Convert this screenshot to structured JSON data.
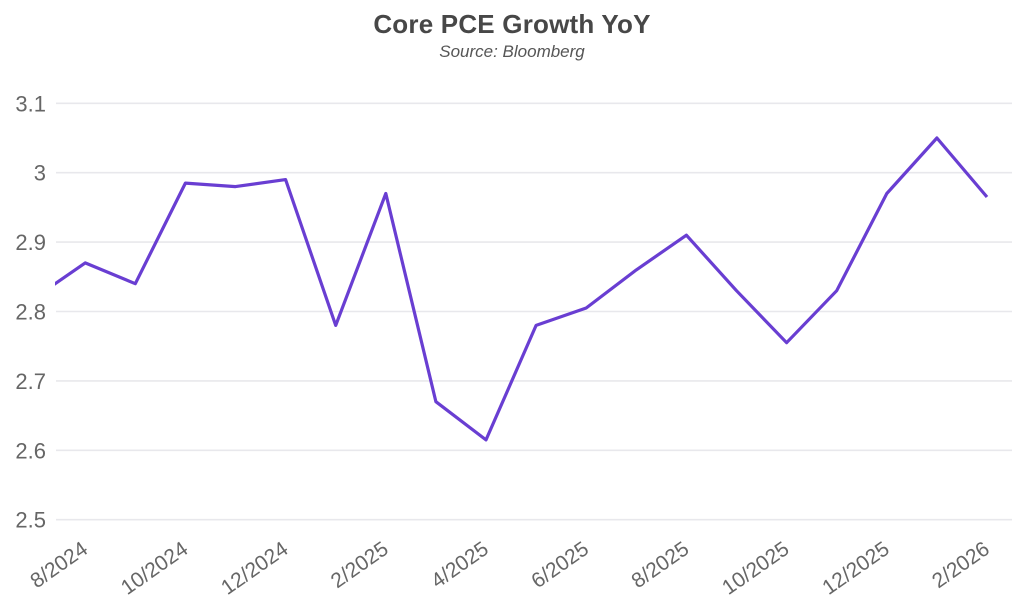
{
  "header": {
    "title": "Core PCE Growth YoY",
    "subtitle": "Source: Bloomberg"
  },
  "chart_data": {
    "type": "line",
    "title": "Core PCE Growth YoY",
    "subtitle": "Source: Bloomberg",
    "x": [
      "8/2024",
      "9/2024",
      "10/2024",
      "11/2024",
      "12/2024",
      "1/2025",
      "2/2025",
      "3/2025",
      "4/2025",
      "5/2025",
      "6/2025",
      "7/2025",
      "8/2025",
      "9/2025",
      "10/2025",
      "11/2025",
      "12/2025",
      "1/2026",
      "2/2026"
    ],
    "values": [
      2.87,
      2.84,
      2.985,
      2.98,
      2.99,
      2.78,
      2.97,
      2.67,
      2.615,
      2.78,
      2.805,
      2.86,
      2.91,
      2.83,
      2.755,
      2.83,
      2.97,
      3.05,
      2.965
    ],
    "lead_in": {
      "x": "7/2024",
      "value": 2.82,
      "note": "line enters clipped from left plot edge"
    },
    "x_tick_labels": [
      "8/2024",
      "10/2024",
      "12/2024",
      "2/2025",
      "4/2025",
      "6/2025",
      "8/2025",
      "10/2025",
      "12/2025",
      "2/2026"
    ],
    "y_ticks": [
      {
        "value": 3.1,
        "label": "3.1"
      },
      {
        "value": 3.0,
        "label": "3"
      },
      {
        "value": 2.9,
        "label": "2.9"
      },
      {
        "value": 2.8,
        "label": "2.8"
      },
      {
        "value": 2.7,
        "label": "2.7"
      },
      {
        "value": 2.6,
        "label": "2.6"
      },
      {
        "value": 2.5,
        "label": "2.5"
      }
    ],
    "ylim": [
      2.5,
      3.1
    ],
    "xlabel": "",
    "ylabel": "",
    "legend": false,
    "grid": true,
    "colors": {
      "line": "#693ed2",
      "grid": "#e8e8ec",
      "axis_labels": "#666666",
      "title": "#474747",
      "subtitle": "#565656",
      "background": "#ffffff"
    }
  }
}
